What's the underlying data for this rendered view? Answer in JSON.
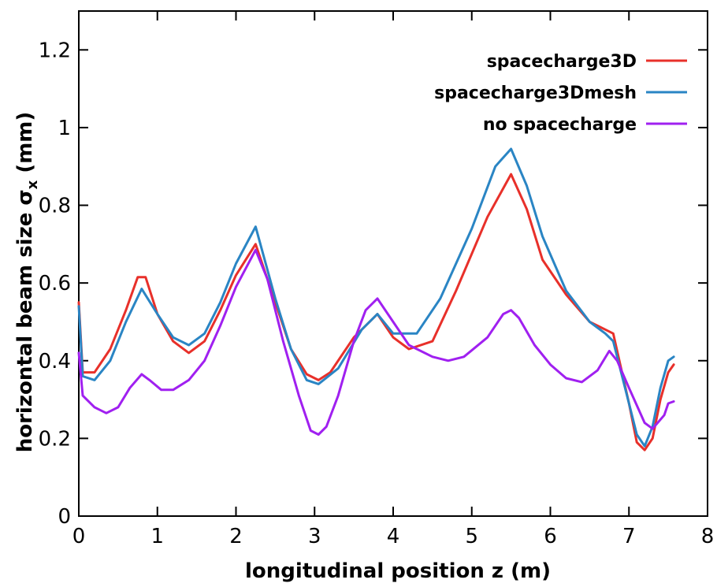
{
  "chart_data": {
    "type": "line",
    "xlabel": "longitudinal position z (m)",
    "ylabel_main": "horizontal beam size σ",
    "ylabel_sub": "x",
    "ylabel_unit": " (mm)",
    "xlim": [
      0,
      8
    ],
    "ylim": [
      0,
      1.3
    ],
    "xticks": [
      0,
      1,
      2,
      3,
      4,
      5,
      6,
      7,
      8
    ],
    "yticks": [
      0,
      0.2,
      0.4,
      0.6,
      0.8,
      1,
      1.2
    ],
    "xtick_labels": [
      "0",
      "1",
      "2",
      "3",
      "4",
      "5",
      "6",
      "7",
      "8"
    ],
    "ytick_labels": [
      "0",
      "0.2",
      "0.4",
      "0.6",
      "0.8",
      "1",
      "1.2"
    ],
    "grid": false,
    "legend_position": "top-right",
    "series": [
      {
        "name": "spacecharge3D",
        "color": "#e8302a",
        "points": [
          [
            0,
            0.55
          ],
          [
            0.05,
            0.37
          ],
          [
            0.2,
            0.37
          ],
          [
            0.4,
            0.43
          ],
          [
            0.6,
            0.53
          ],
          [
            0.75,
            0.615
          ],
          [
            0.85,
            0.615
          ],
          [
            1.0,
            0.52
          ],
          [
            1.2,
            0.45
          ],
          [
            1.4,
            0.42
          ],
          [
            1.6,
            0.45
          ],
          [
            1.8,
            0.53
          ],
          [
            2.0,
            0.62
          ],
          [
            2.25,
            0.7
          ],
          [
            2.5,
            0.55
          ],
          [
            2.7,
            0.43
          ],
          [
            2.9,
            0.365
          ],
          [
            3.05,
            0.35
          ],
          [
            3.2,
            0.37
          ],
          [
            3.5,
            0.46
          ],
          [
            3.8,
            0.52
          ],
          [
            4.0,
            0.46
          ],
          [
            4.2,
            0.43
          ],
          [
            4.5,
            0.45
          ],
          [
            4.8,
            0.58
          ],
          [
            5.2,
            0.77
          ],
          [
            5.5,
            0.88
          ],
          [
            5.7,
            0.79
          ],
          [
            5.9,
            0.66
          ],
          [
            6.2,
            0.57
          ],
          [
            6.5,
            0.5
          ],
          [
            6.7,
            0.48
          ],
          [
            6.8,
            0.47
          ],
          [
            7.0,
            0.29
          ],
          [
            7.1,
            0.19
          ],
          [
            7.2,
            0.17
          ],
          [
            7.3,
            0.2
          ],
          [
            7.4,
            0.3
          ],
          [
            7.5,
            0.37
          ],
          [
            7.57,
            0.39
          ]
        ]
      },
      {
        "name": "spacecharge3Dmesh",
        "color": "#2a85c4",
        "points": [
          [
            0,
            0.54
          ],
          [
            0.05,
            0.36
          ],
          [
            0.2,
            0.35
          ],
          [
            0.4,
            0.4
          ],
          [
            0.6,
            0.5
          ],
          [
            0.8,
            0.585
          ],
          [
            1.0,
            0.52
          ],
          [
            1.2,
            0.46
          ],
          [
            1.4,
            0.44
          ],
          [
            1.6,
            0.47
          ],
          [
            1.8,
            0.55
          ],
          [
            2.0,
            0.65
          ],
          [
            2.25,
            0.745
          ],
          [
            2.5,
            0.56
          ],
          [
            2.7,
            0.43
          ],
          [
            2.9,
            0.35
          ],
          [
            3.05,
            0.34
          ],
          [
            3.3,
            0.38
          ],
          [
            3.6,
            0.48
          ],
          [
            3.8,
            0.52
          ],
          [
            4.0,
            0.47
          ],
          [
            4.3,
            0.47
          ],
          [
            4.6,
            0.56
          ],
          [
            5.0,
            0.74
          ],
          [
            5.3,
            0.9
          ],
          [
            5.5,
            0.945
          ],
          [
            5.7,
            0.85
          ],
          [
            5.9,
            0.72
          ],
          [
            6.2,
            0.58
          ],
          [
            6.5,
            0.5
          ],
          [
            6.7,
            0.47
          ],
          [
            6.8,
            0.45
          ],
          [
            7.0,
            0.29
          ],
          [
            7.1,
            0.21
          ],
          [
            7.2,
            0.18
          ],
          [
            7.3,
            0.23
          ],
          [
            7.4,
            0.33
          ],
          [
            7.5,
            0.4
          ],
          [
            7.57,
            0.41
          ]
        ]
      },
      {
        "name": "no spacecharge",
        "color": "#a020f0",
        "points": [
          [
            0,
            0.42
          ],
          [
            0.05,
            0.31
          ],
          [
            0.2,
            0.28
          ],
          [
            0.35,
            0.265
          ],
          [
            0.5,
            0.28
          ],
          [
            0.65,
            0.33
          ],
          [
            0.8,
            0.365
          ],
          [
            0.9,
            0.35
          ],
          [
            1.05,
            0.325
          ],
          [
            1.2,
            0.325
          ],
          [
            1.4,
            0.35
          ],
          [
            1.6,
            0.4
          ],
          [
            1.8,
            0.49
          ],
          [
            2.0,
            0.59
          ],
          [
            2.25,
            0.685
          ],
          [
            2.4,
            0.61
          ],
          [
            2.6,
            0.45
          ],
          [
            2.8,
            0.31
          ],
          [
            2.95,
            0.22
          ],
          [
            3.05,
            0.21
          ],
          [
            3.15,
            0.23
          ],
          [
            3.3,
            0.31
          ],
          [
            3.5,
            0.45
          ],
          [
            3.65,
            0.53
          ],
          [
            3.8,
            0.56
          ],
          [
            4.0,
            0.5
          ],
          [
            4.2,
            0.44
          ],
          [
            4.5,
            0.41
          ],
          [
            4.7,
            0.4
          ],
          [
            4.9,
            0.41
          ],
          [
            5.2,
            0.46
          ],
          [
            5.4,
            0.52
          ],
          [
            5.5,
            0.53
          ],
          [
            5.6,
            0.51
          ],
          [
            5.8,
            0.44
          ],
          [
            6.0,
            0.39
          ],
          [
            6.2,
            0.355
          ],
          [
            6.4,
            0.345
          ],
          [
            6.6,
            0.375
          ],
          [
            6.75,
            0.425
          ],
          [
            6.85,
            0.4
          ],
          [
            7.0,
            0.33
          ],
          [
            7.2,
            0.24
          ],
          [
            7.3,
            0.225
          ],
          [
            7.45,
            0.26
          ],
          [
            7.5,
            0.29
          ],
          [
            7.57,
            0.295
          ]
        ]
      }
    ]
  }
}
